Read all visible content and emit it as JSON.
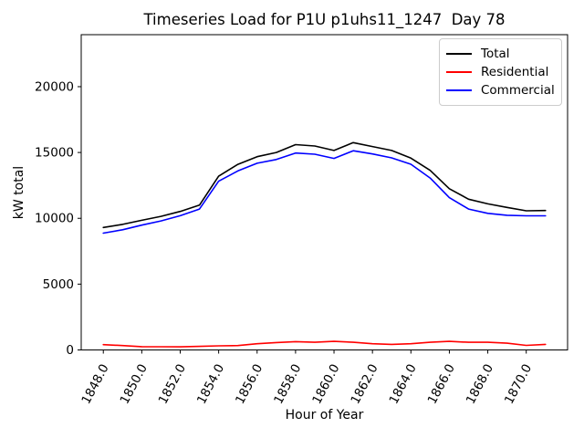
{
  "chart_data": {
    "type": "line",
    "title": "Timeseries Load for P1U p1uhs11_1247  Day 78",
    "xlabel": "Hour of Year",
    "ylabel": "kW total",
    "grid": false,
    "legend_position": "upper right",
    "xlim": [
      1846.85,
      1872.15
    ],
    "ylim": [
      0,
      23950
    ],
    "x": [
      1848,
      1849,
      1850,
      1851,
      1852,
      1853,
      1854,
      1855,
      1856,
      1857,
      1858,
      1859,
      1860,
      1861,
      1862,
      1863,
      1864,
      1865,
      1866,
      1867,
      1868,
      1869,
      1870,
      1871
    ],
    "series": [
      {
        "name": "Total",
        "color": "#000000",
        "values": [
          9300,
          9540,
          9850,
          10150,
          10520,
          11000,
          13200,
          14100,
          14680,
          15000,
          15600,
          15490,
          15150,
          15750,
          15450,
          15150,
          14570,
          13640,
          12250,
          11450,
          11100,
          10825,
          10570,
          10590
        ]
      },
      {
        "name": "Residential",
        "color": "#ff0000",
        "values": [
          400,
          330,
          250,
          240,
          235,
          270,
          310,
          330,
          470,
          560,
          630,
          580,
          650,
          580,
          470,
          420,
          470,
          580,
          650,
          580,
          580,
          510,
          350,
          420
        ]
      },
      {
        "name": "Commercial",
        "color": "#0000ff",
        "values": [
          8870,
          9130,
          9480,
          9800,
          10200,
          10700,
          12820,
          13600,
          14180,
          14470,
          14960,
          14870,
          14550,
          15130,
          14890,
          14590,
          14110,
          13060,
          11570,
          10700,
          10380,
          10230,
          10190,
          10190
        ]
      }
    ],
    "x_tick_values": [
      1848,
      1850,
      1852,
      1854,
      1856,
      1858,
      1860,
      1862,
      1864,
      1866,
      1868,
      1870
    ],
    "x_tick_labels": [
      "1848.0",
      "1850.0",
      "1852.0",
      "1854.0",
      "1856.0",
      "1858.0",
      "1860.0",
      "1862.0",
      "1864.0",
      "1866.0",
      "1868.0",
      "1870.0"
    ],
    "y_tick_values": [
      0,
      5000,
      10000,
      15000,
      20000
    ],
    "y_tick_labels": [
      "0",
      "5000",
      "10000",
      "15000",
      "20000"
    ]
  }
}
